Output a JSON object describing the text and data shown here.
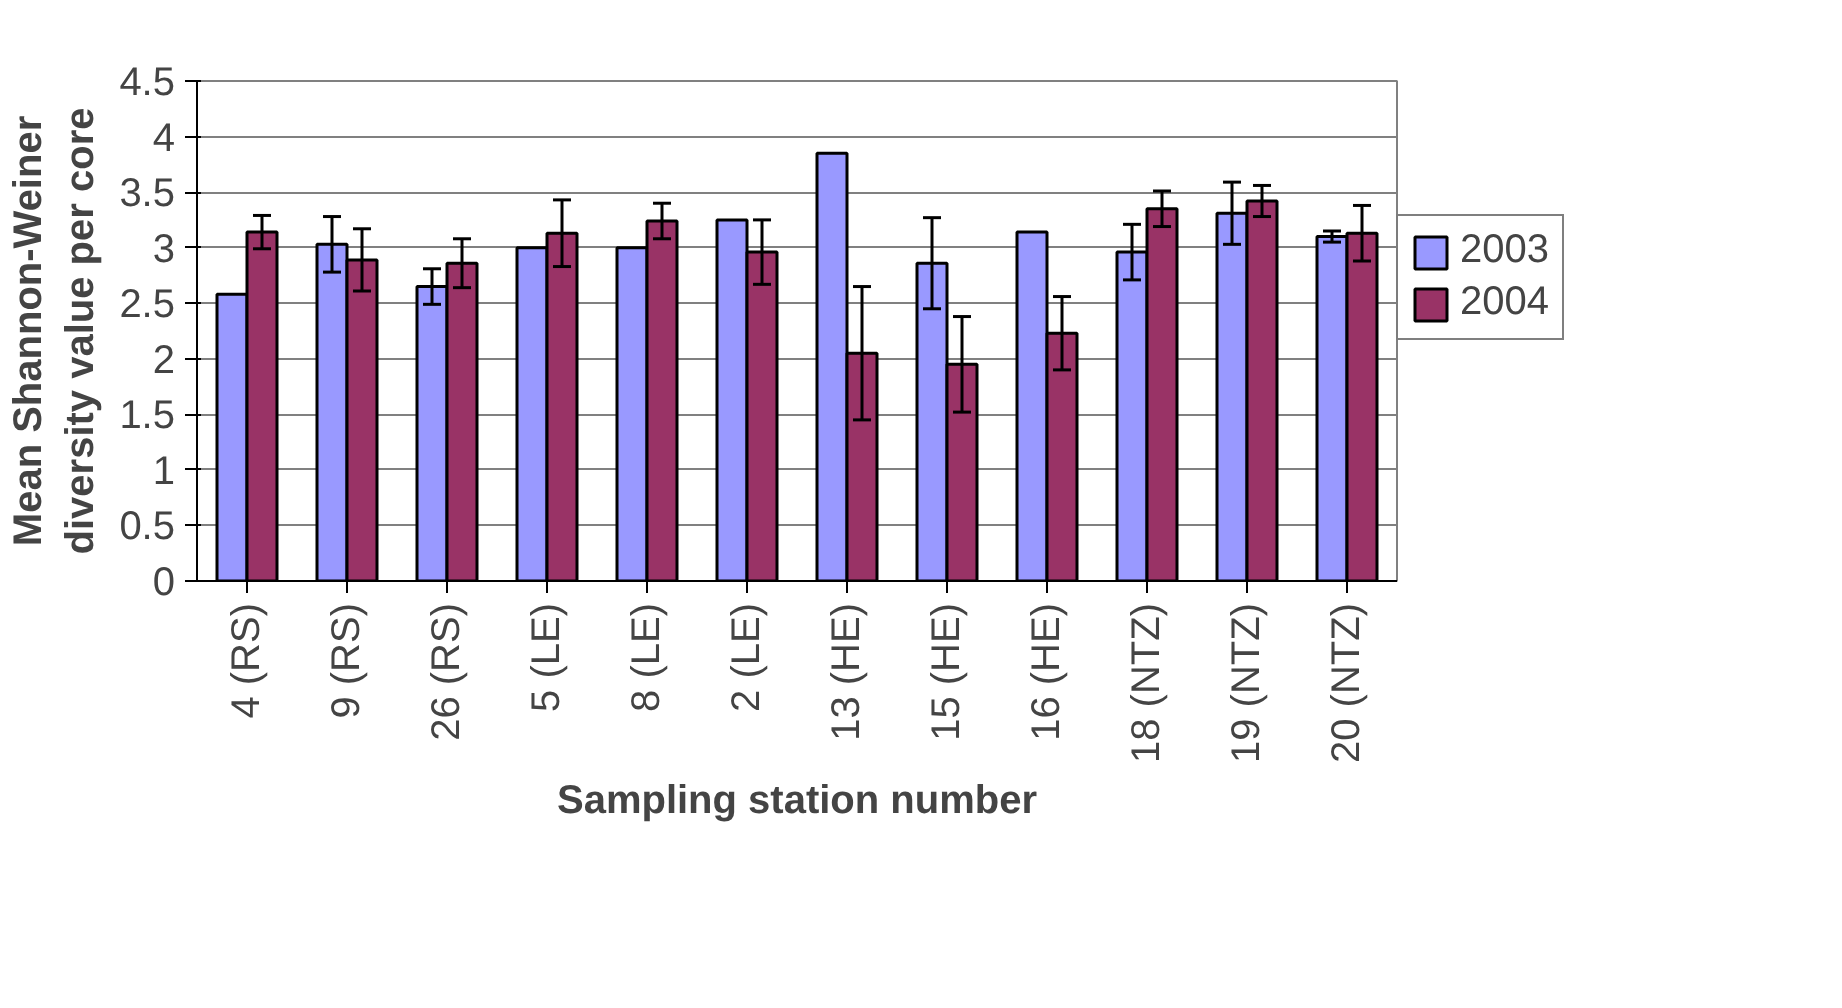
{
  "chart_data": {
    "type": "bar",
    "xlabel": "Sampling station number",
    "ylabel": "Mean Shannon-Weiner\ndiversity value per core",
    "categories": [
      "4 (RS)",
      "9 (RS)",
      "26 (RS)",
      "5 (LE)",
      "8 (LE)",
      "2 (LE)",
      "13 (HE)",
      "15 (HE)",
      "16 (HE)",
      "18 (NTZ)",
      "19 (NTZ)",
      "20 (NTZ)"
    ],
    "series": [
      {
        "name": "2003",
        "color": "#9999ff",
        "values": [
          2.58,
          3.03,
          2.65,
          3.0,
          3.0,
          3.25,
          3.85,
          2.86,
          3.14,
          2.96,
          3.31,
          3.1
        ],
        "errors": [
          null,
          0.25,
          0.16,
          null,
          null,
          null,
          null,
          0.41,
          null,
          0.25,
          0.28,
          0.05
        ]
      },
      {
        "name": "2004",
        "color": "#993366",
        "values": [
          3.14,
          2.89,
          2.86,
          3.13,
          3.24,
          2.96,
          2.05,
          1.95,
          2.23,
          3.35,
          3.42,
          3.13
        ],
        "errors": [
          0.15,
          0.28,
          0.22,
          0.3,
          0.16,
          0.29,
          0.6,
          0.43,
          0.33,
          0.16,
          0.14,
          0.25
        ]
      }
    ],
    "ylim": [
      0,
      4.5
    ],
    "yticks": [
      0,
      0.5,
      1,
      1.5,
      2,
      2.5,
      3,
      3.5,
      4,
      4.5
    ],
    "grid": "y",
    "legend": "right"
  }
}
